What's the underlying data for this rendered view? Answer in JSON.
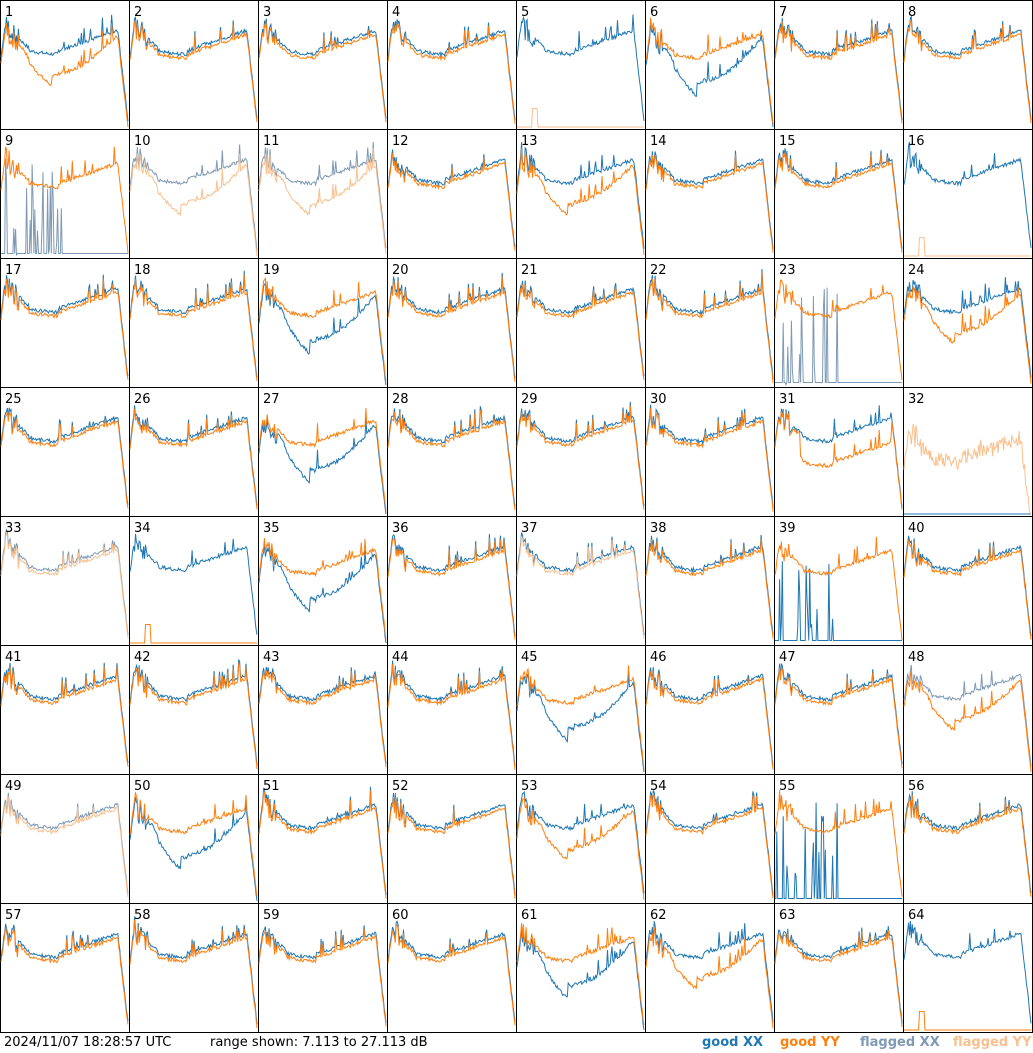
{
  "chart_data": {
    "type": "line",
    "layout": "8x8 small multiples",
    "panels": [
      {
        "label": "1",
        "profile": "dip",
        "flags": [],
        "yy_low": true
      },
      {
        "label": "2",
        "profile": "normal",
        "flags": []
      },
      {
        "label": "3",
        "profile": "normal",
        "flags": []
      },
      {
        "label": "4",
        "profile": "normal",
        "flags": []
      },
      {
        "label": "5",
        "profile": "yy_dropout",
        "flags": [
          "yy"
        ]
      },
      {
        "label": "6",
        "profile": "xx_dip",
        "flags": []
      },
      {
        "label": "7",
        "profile": "normal",
        "flags": []
      },
      {
        "label": "8",
        "profile": "normal",
        "flags": []
      },
      {
        "label": "9",
        "profile": "xx_dropout",
        "flags": [
          "xx"
        ]
      },
      {
        "label": "10",
        "profile": "dip",
        "flags": [
          "xx",
          "yy"
        ]
      },
      {
        "label": "11",
        "profile": "dip",
        "flags": [
          "xx",
          "yy"
        ]
      },
      {
        "label": "12",
        "profile": "normal",
        "flags": []
      },
      {
        "label": "13",
        "profile": "dip",
        "flags": []
      },
      {
        "label": "14",
        "profile": "normal",
        "flags": []
      },
      {
        "label": "15",
        "profile": "normal",
        "flags": []
      },
      {
        "label": "16",
        "profile": "yy_dropout",
        "flags": [
          "yy"
        ]
      },
      {
        "label": "17",
        "profile": "normal",
        "flags": []
      },
      {
        "label": "18",
        "profile": "normal",
        "flags": []
      },
      {
        "label": "19",
        "profile": "xx_dip",
        "flags": []
      },
      {
        "label": "20",
        "profile": "normal",
        "flags": []
      },
      {
        "label": "21",
        "profile": "normal",
        "flags": []
      },
      {
        "label": "22",
        "profile": "normal",
        "flags": []
      },
      {
        "label": "23",
        "profile": "xx_dropout",
        "flags": [
          "xx"
        ]
      },
      {
        "label": "24",
        "profile": "dip",
        "flags": []
      },
      {
        "label": "25",
        "profile": "normal",
        "flags": []
      },
      {
        "label": "26",
        "profile": "normal",
        "flags": []
      },
      {
        "label": "27",
        "profile": "xx_dip",
        "flags": []
      },
      {
        "label": "28",
        "profile": "normal",
        "flags": []
      },
      {
        "label": "29",
        "profile": "normal",
        "flags": []
      },
      {
        "label": "30",
        "profile": "normal",
        "flags": []
      },
      {
        "label": "31",
        "profile": "yy_low",
        "flags": []
      },
      {
        "label": "32",
        "profile": "yy_only_noisy",
        "flags": [
          "yy"
        ]
      },
      {
        "label": "33",
        "profile": "normal",
        "flags": [
          "xx",
          "yy"
        ]
      },
      {
        "label": "34",
        "profile": "yy_dropout",
        "flags": []
      },
      {
        "label": "35",
        "profile": "xx_dip",
        "flags": []
      },
      {
        "label": "36",
        "profile": "normal",
        "flags": []
      },
      {
        "label": "37",
        "profile": "normal",
        "flags": [
          "yy"
        ]
      },
      {
        "label": "38",
        "profile": "normal",
        "flags": []
      },
      {
        "label": "39",
        "profile": "xx_dropout",
        "flags": []
      },
      {
        "label": "40",
        "profile": "normal",
        "flags": []
      },
      {
        "label": "41",
        "profile": "normal",
        "flags": []
      },
      {
        "label": "42",
        "profile": "normal",
        "flags": []
      },
      {
        "label": "43",
        "profile": "normal",
        "flags": []
      },
      {
        "label": "44",
        "profile": "normal",
        "flags": []
      },
      {
        "label": "45",
        "profile": "xx_dip",
        "flags": []
      },
      {
        "label": "46",
        "profile": "normal",
        "flags": []
      },
      {
        "label": "47",
        "profile": "normal",
        "flags": []
      },
      {
        "label": "48",
        "profile": "dip",
        "flags": [
          "xx"
        ]
      },
      {
        "label": "49",
        "profile": "normal",
        "flags": [
          "xx",
          "yy"
        ]
      },
      {
        "label": "50",
        "profile": "xx_dip",
        "flags": []
      },
      {
        "label": "51",
        "profile": "normal",
        "flags": []
      },
      {
        "label": "52",
        "profile": "normal",
        "flags": []
      },
      {
        "label": "53",
        "profile": "dip",
        "flags": []
      },
      {
        "label": "54",
        "profile": "normal",
        "flags": []
      },
      {
        "label": "55",
        "profile": "xx_dropout",
        "flags": []
      },
      {
        "label": "56",
        "profile": "normal",
        "flags": []
      },
      {
        "label": "57",
        "profile": "normal",
        "flags": []
      },
      {
        "label": "58",
        "profile": "normal",
        "flags": []
      },
      {
        "label": "59",
        "profile": "normal",
        "flags": []
      },
      {
        "label": "60",
        "profile": "normal",
        "flags": []
      },
      {
        "label": "61",
        "profile": "xx_dip",
        "flags": []
      },
      {
        "label": "62",
        "profile": "dip",
        "flags": []
      },
      {
        "label": "63",
        "profile": "normal",
        "flags": []
      },
      {
        "label": "64",
        "profile": "yy_dropout",
        "flags": []
      }
    ],
    "grid": false
  },
  "footer": {
    "timestamp": "2024/11/07 18:28:57 UTC",
    "range": "range shown: 7.113 to 27.113 dB",
    "legend": {
      "good_xx": "good XX",
      "good_yy": "good YY",
      "flagged_xx": "flagged XX",
      "flagged_yy": "flagged YY"
    }
  },
  "colors": {
    "good_xx": "#1f77b4",
    "good_yy": "#ff7f0e",
    "flagged_xx": "#7f9ab5",
    "flagged_yy": "#f9c08e",
    "border": "#000000"
  }
}
